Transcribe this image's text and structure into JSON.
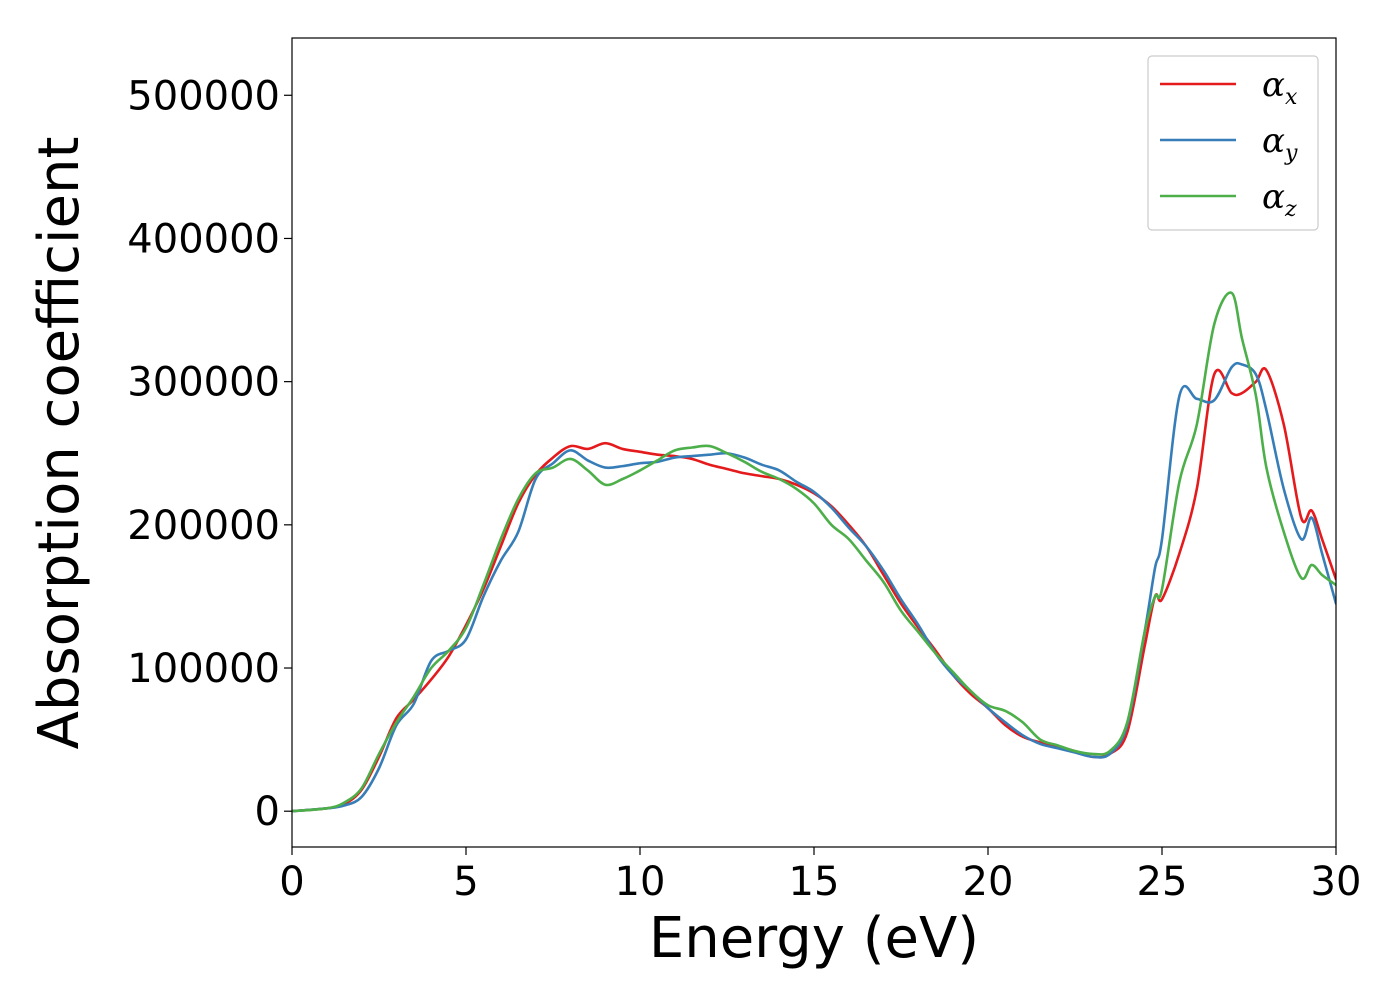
{
  "chart_data": {
    "type": "line",
    "xlabel": "Energy (eV)",
    "ylabel": "Absorption coefficient",
    "xlim": [
      0,
      30
    ],
    "ylim": [
      -25000,
      540000
    ],
    "xticks": [
      0,
      5,
      10,
      15,
      20,
      25,
      30
    ],
    "yticks": [
      0,
      100000,
      200000,
      300000,
      400000,
      500000
    ],
    "grid": false,
    "legend_position": "top-right",
    "series": [
      {
        "name": "α_x",
        "symbol": "α",
        "subscript": "x",
        "color": "#e41a1c",
        "x": [
          0,
          1,
          1.5,
          2,
          2.5,
          3,
          3.5,
          4,
          4.5,
          5,
          5.5,
          6,
          6.5,
          7,
          7.5,
          8,
          8.5,
          9,
          9.5,
          10,
          10.5,
          11,
          11.5,
          12,
          12.5,
          13,
          13.5,
          14,
          14.5,
          15,
          15.5,
          16,
          16.5,
          17,
          17.5,
          18,
          18.5,
          19,
          19.5,
          20,
          20.5,
          21,
          21.5,
          22,
          22.5,
          23,
          23.5,
          24,
          24.5,
          24.8,
          25,
          25.5,
          26,
          26.5,
          27,
          27.3,
          27.7,
          28,
          28.5,
          29,
          29.3,
          29.6,
          30
        ],
        "y": [
          0,
          2000,
          5000,
          15000,
          38000,
          65000,
          78000,
          92000,
          108000,
          130000,
          155000,
          185000,
          215000,
          235000,
          247000,
          255000,
          253000,
          257000,
          253000,
          251000,
          249000,
          248000,
          246000,
          242000,
          239000,
          236000,
          234000,
          232000,
          228000,
          222000,
          213000,
          200000,
          185000,
          165000,
          145000,
          128000,
          112000,
          95000,
          82000,
          72000,
          60000,
          52000,
          48000,
          45000,
          42000,
          38000,
          40000,
          55000,
          115000,
          150000,
          148000,
          180000,
          225000,
          305000,
          292000,
          292000,
          300000,
          308000,
          270000,
          205000,
          210000,
          190000,
          162000
        ]
      },
      {
        "name": "α_y",
        "symbol": "α",
        "subscript": "y",
        "color": "#377eb8",
        "x": [
          0,
          1,
          1.5,
          2,
          2.5,
          3,
          3.5,
          4,
          4.5,
          5,
          5.5,
          6,
          6.5,
          7,
          7.5,
          8,
          8.5,
          9,
          9.5,
          10,
          10.5,
          11,
          11.5,
          12,
          12.5,
          13,
          13.5,
          14,
          14.5,
          15,
          15.5,
          16,
          16.5,
          17,
          17.5,
          18,
          18.5,
          19,
          19.5,
          20,
          20.5,
          21,
          21.5,
          22,
          22.5,
          23,
          23.5,
          24,
          24.5,
          24.8,
          25,
          25.5,
          26,
          26.5,
          27,
          27.3,
          27.7,
          28,
          28.5,
          29,
          29.3,
          29.6,
          30
        ],
        "y": [
          0,
          2000,
          4000,
          10000,
          30000,
          60000,
          75000,
          105000,
          112000,
          120000,
          150000,
          175000,
          195000,
          232000,
          243000,
          252000,
          245000,
          240000,
          241000,
          243000,
          244000,
          247000,
          248000,
          249000,
          250000,
          247000,
          242000,
          238000,
          230000,
          223000,
          212000,
          198000,
          185000,
          168000,
          148000,
          130000,
          110000,
          95000,
          84000,
          72000,
          62000,
          53000,
          47000,
          44000,
          41000,
          38000,
          40000,
          60000,
          125000,
          170000,
          190000,
          290000,
          288000,
          287000,
          310000,
          312000,
          305000,
          280000,
          225000,
          190000,
          205000,
          180000,
          145000
        ]
      },
      {
        "name": "α_z",
        "symbol": "α",
        "subscript": "z",
        "color": "#4daf4a",
        "x": [
          0,
          1,
          1.5,
          2,
          2.5,
          3,
          3.5,
          4,
          4.5,
          5,
          5.5,
          6,
          6.5,
          7,
          7.5,
          8,
          8.5,
          9,
          9.5,
          10,
          10.5,
          11,
          11.5,
          12,
          12.5,
          13,
          13.5,
          14,
          14.5,
          15,
          15.5,
          16,
          16.5,
          17,
          17.5,
          18,
          18.5,
          19,
          19.5,
          20,
          20.5,
          21,
          21.5,
          22,
          22.5,
          23,
          23.5,
          24,
          24.5,
          24.8,
          25,
          25.5,
          26,
          26.5,
          27,
          27.3,
          27.7,
          28,
          28.5,
          29,
          29.3,
          29.6,
          30
        ],
        "y": [
          0,
          2000,
          6000,
          16000,
          40000,
          62000,
          80000,
          100000,
          112000,
          128000,
          158000,
          190000,
          218000,
          236000,
          240000,
          246000,
          238000,
          228000,
          232000,
          238000,
          245000,
          252000,
          254000,
          255000,
          250000,
          244000,
          237000,
          232000,
          225000,
          215000,
          200000,
          190000,
          175000,
          160000,
          140000,
          125000,
          110000,
          97000,
          84000,
          74000,
          70000,
          62000,
          50000,
          46000,
          42000,
          40000,
          42000,
          62000,
          125000,
          150000,
          155000,
          230000,
          270000,
          340000,
          362000,
          330000,
          290000,
          240000,
          195000,
          163000,
          172000,
          165000,
          158000
        ]
      }
    ]
  }
}
